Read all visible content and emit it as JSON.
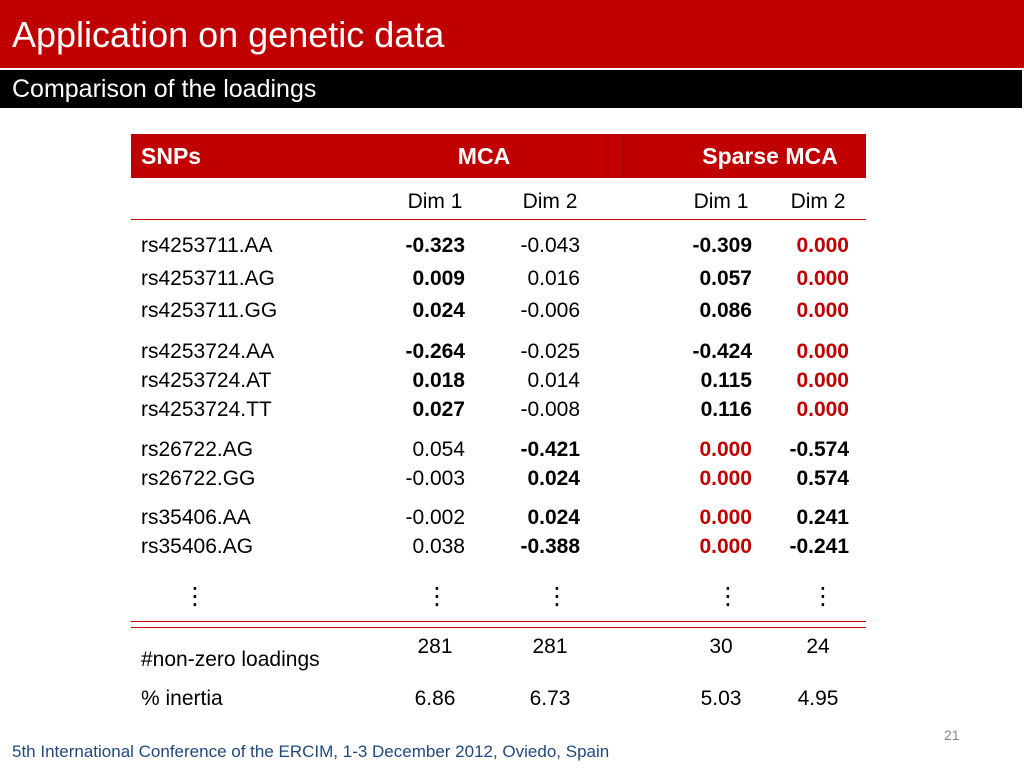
{
  "slide": {
    "title": "Application on genetic data",
    "subtitle": "Comparison of the loadings",
    "page_number": "21",
    "footer": "5th International Conference of the ERCIM, 1-3 December 2012, Oviedo, Spain"
  },
  "colors": {
    "title_bar": "#C00000",
    "subtitle_bar": "#000000",
    "table_header": "#C00000",
    "table_rule": "#C00000",
    "zero_loading": "#C00000",
    "footer_text": "#1F497D",
    "page_number": "#898989"
  },
  "table": {
    "headers": {
      "snps": "SNPs",
      "mca": "MCA",
      "sparse_mca": "Sparse MCA"
    },
    "subheaders": {
      "mca_dim1": "Dim 1",
      "mca_dim2": "Dim 2",
      "sparse_dim1": "Dim 1",
      "sparse_dim2": "Dim 2"
    },
    "rows": [
      {
        "snp": "rs4253711.AA",
        "mca_dim1": "-0.323",
        "mca_dim2": "-0.043",
        "sparse_dim1": "-0.309",
        "sparse_dim2": "0.000"
      },
      {
        "snp": "rs4253711.AG",
        "mca_dim1": "0.009",
        "mca_dim2": "0.016",
        "sparse_dim1": "0.057",
        "sparse_dim2": "0.000"
      },
      {
        "snp": "rs4253711.GG",
        "mca_dim1": "0.024",
        "mca_dim2": "-0.006",
        "sparse_dim1": "0.086",
        "sparse_dim2": "0.000"
      },
      {
        "snp": "rs4253724.AA",
        "mca_dim1": "-0.264",
        "mca_dim2": "-0.025",
        "sparse_dim1": "-0.424",
        "sparse_dim2": "0.000"
      },
      {
        "snp": "rs4253724.AT",
        "mca_dim1": "0.018",
        "mca_dim2": "0.014",
        "sparse_dim1": "0.115",
        "sparse_dim2": "0.000"
      },
      {
        "snp": "rs4253724.TT",
        "mca_dim1": "0.027",
        "mca_dim2": "-0.008",
        "sparse_dim1": "0.116",
        "sparse_dim2": "0.000"
      },
      {
        "snp": "rs26722.AG",
        "mca_dim1": "0.054",
        "mca_dim2": "-0.421",
        "sparse_dim1": "0.000",
        "sparse_dim2": "-0.574"
      },
      {
        "snp": "rs26722.GG",
        "mca_dim1": "-0.003",
        "mca_dim2": "0.024",
        "sparse_dim1": "0.000",
        "sparse_dim2": "0.574"
      },
      {
        "snp": "rs35406.AA",
        "mca_dim1": "-0.002",
        "mca_dim2": "0.024",
        "sparse_dim1": "0.000",
        "sparse_dim2": "0.241"
      },
      {
        "snp": "rs35406.AG",
        "mca_dim1": "0.038",
        "mca_dim2": "-0.388",
        "sparse_dim1": "0.000",
        "sparse_dim2": "-0.241"
      }
    ],
    "ellipsis": [
      "⋮",
      "⋮",
      "⋮",
      "⋮",
      "⋮"
    ],
    "summary": [
      {
        "label": "#non-zero loadings",
        "mca_dim1": "281",
        "mca_dim2": "281",
        "sparse_dim1": "30",
        "sparse_dim2": "24"
      },
      {
        "label": "% inertia",
        "mca_dim1": "6.86",
        "mca_dim2": "6.73",
        "sparse_dim1": "5.03",
        "sparse_dim2": "4.95"
      }
    ]
  }
}
